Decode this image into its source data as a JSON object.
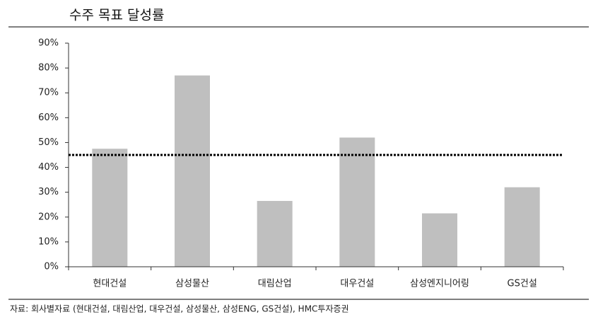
{
  "chart_data": {
    "type": "bar",
    "title": "수주 목표 달성률",
    "categories": [
      "현대건설",
      "삼성물산",
      "대림산업",
      "대우건설",
      "삼성엔지니어링",
      "GS건설"
    ],
    "values": [
      47.5,
      77,
      26.5,
      52,
      21.5,
      32
    ],
    "color": "#bfbfbf",
    "reference_line": 45,
    "ylim": [
      0,
      90
    ],
    "yticks": [
      {
        "value": 0,
        "label": "0%"
      },
      {
        "value": 10,
        "label": "10%"
      },
      {
        "value": 20,
        "label": "20%"
      },
      {
        "value": 30,
        "label": "30%"
      },
      {
        "value": 40,
        "label": "40%"
      },
      {
        "value": 50,
        "label": "50%"
      },
      {
        "value": 60,
        "label": "60%"
      },
      {
        "value": 70,
        "label": "70%"
      },
      {
        "value": 80,
        "label": "80%"
      },
      {
        "value": 90,
        "label": "90%"
      }
    ],
    "source": "자료: 회사별자료 (현대건설, 대림산업, 대우건설, 삼성물산, 삼성ENG, GS건설), HMC투자증권"
  }
}
